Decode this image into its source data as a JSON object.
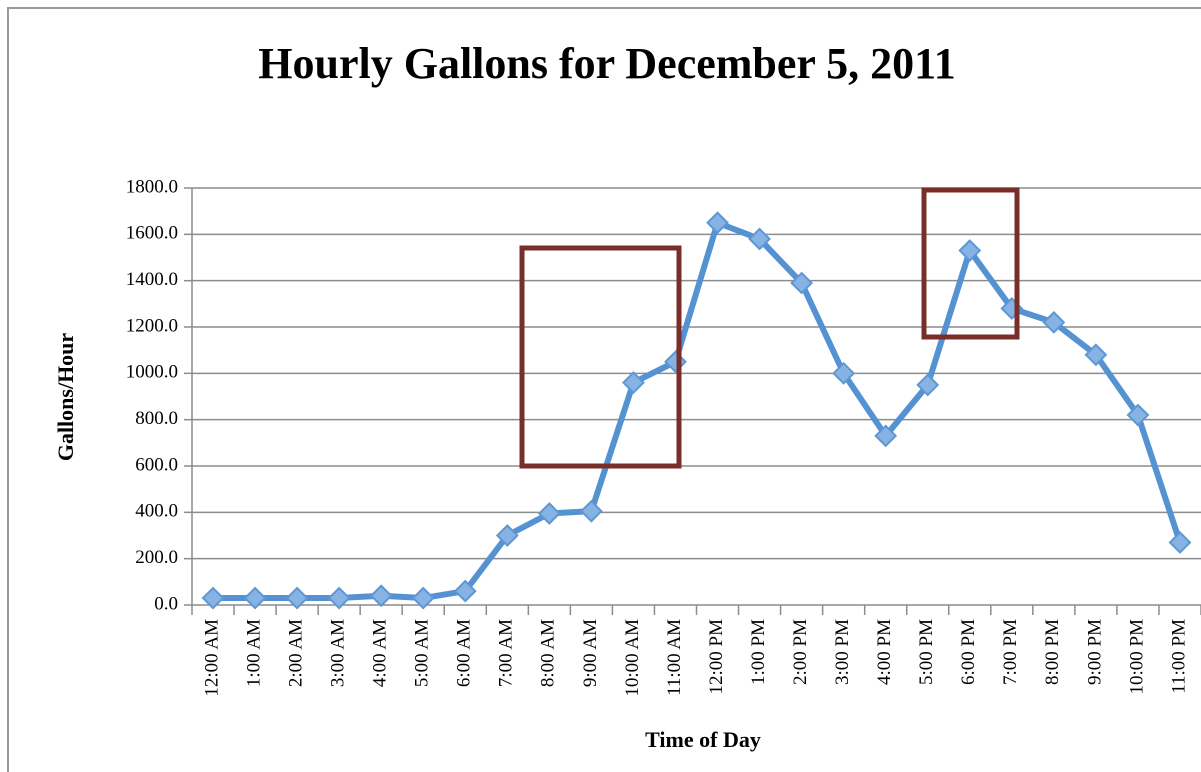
{
  "chart_data": {
    "type": "line",
    "title": "Hourly Gallons for December 5, 2011",
    "x_label": "Time of Day",
    "y_label": "Gallons/Hour",
    "categories": [
      "12:00 AM",
      "1:00 AM",
      "2:00 AM",
      "3:00 AM",
      "4:00 AM",
      "5:00 AM",
      "6:00 AM",
      "7:00 AM",
      "8:00 AM",
      "9:00 AM",
      "10:00 AM",
      "11:00 AM",
      "12:00 PM",
      "1:00 PM",
      "2:00 PM",
      "3:00 PM",
      "4:00 PM",
      "5:00 PM",
      "6:00 PM",
      "7:00 PM",
      "8:00 PM",
      "9:00 PM",
      "10:00 PM",
      "11:00 PM"
    ],
    "series": [
      {
        "name": "Gallons/Hour",
        "color": "#5592d2",
        "values": [
          30,
          30,
          30,
          30,
          40,
          30,
          60,
          300,
          395,
          405,
          960,
          1050,
          1650,
          1580,
          1390,
          1000,
          730,
          950,
          1530,
          1280,
          1220,
          1080,
          820,
          270
        ]
      }
    ],
    "ylim": [
      0,
      1800
    ],
    "yticks": [
      {
        "value": 0,
        "label": "0.0"
      },
      {
        "value": 200,
        "label": "200.0"
      },
      {
        "value": 400,
        "label": "400.0"
      },
      {
        "value": 600,
        "label": "600.0"
      },
      {
        "value": 800,
        "label": "800.0"
      },
      {
        "value": 1000,
        "label": "1000.0"
      },
      {
        "value": 1200,
        "label": "1200.0"
      },
      {
        "value": 1400,
        "label": "1400.0"
      },
      {
        "value": 1600,
        "label": "1600.0"
      },
      {
        "value": 1800,
        "label": "1800.0"
      }
    ],
    "grid": true
  }
}
